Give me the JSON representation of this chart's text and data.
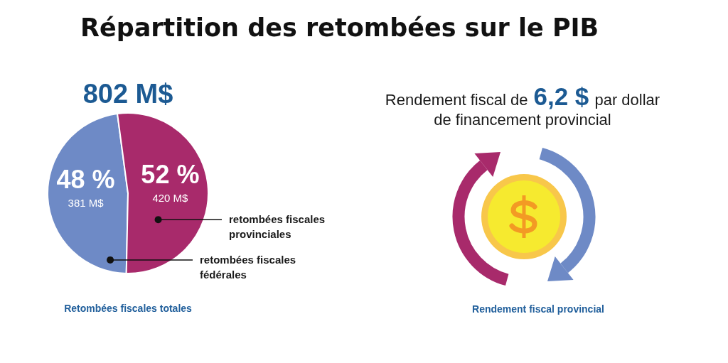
{
  "chart_data": [
    {
      "type": "pie",
      "title": "Répartition des retombées sur le PIB",
      "subtitle": "802 M$",
      "categories": [
        "retombées fiscales fédérales",
        "retombées fiscales provinciales"
      ],
      "values": [
        381,
        420
      ],
      "colors": [
        "#6e8ac6",
        "#a82a6b"
      ],
      "value_labels": [
        "48 %\n381 M$",
        "52 %\n420 M$"
      ],
      "annotations": [
        "Retombées fiscales totales"
      ]
    },
    {
      "type": "other",
      "title": "Rendement fiscal de 6,2 $ par dollar de financement provincial",
      "annotations": [
        "Rendement fiscal provincial"
      ]
    }
  ]
}
